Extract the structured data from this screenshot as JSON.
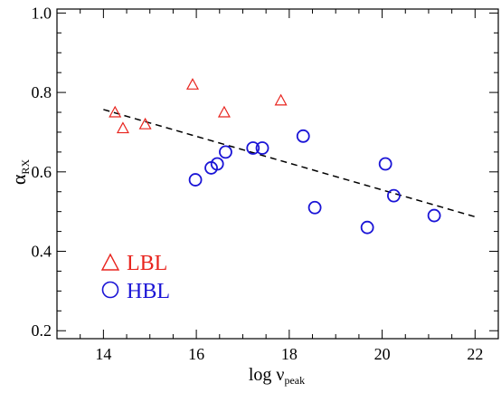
{
  "chart_data": {
    "type": "scatter",
    "xlabel": {
      "main": "log ν",
      "sub": "peak"
    },
    "ylabel": {
      "main": "α",
      "sub": "RX"
    },
    "xlim": [
      13,
      22.5
    ],
    "ylim": [
      0.18,
      1.01
    ],
    "xticks": [
      14,
      16,
      18,
      20,
      22
    ],
    "xtick_labels": [
      "14",
      "16",
      "18",
      "20",
      "22"
    ],
    "yticks": [
      0.2,
      0.4,
      0.6,
      0.8,
      1.0
    ],
    "ytick_labels": [
      "0.2",
      "0.4",
      "0.6",
      "0.8",
      "1.0"
    ],
    "grid": false,
    "legend_position": "bottom-left",
    "series": [
      {
        "name": "LBL",
        "marker": "triangle",
        "color": "#e8241e",
        "points": [
          {
            "x": 14.25,
            "y": 0.75
          },
          {
            "x": 14.42,
            "y": 0.71
          },
          {
            "x": 14.9,
            "y": 0.72
          },
          {
            "x": 15.92,
            "y": 0.82
          },
          {
            "x": 16.6,
            "y": 0.75
          },
          {
            "x": 17.82,
            "y": 0.78
          }
        ]
      },
      {
        "name": "HBL",
        "marker": "circle",
        "color": "#1a14d6",
        "points": [
          {
            "x": 15.98,
            "y": 0.58
          },
          {
            "x": 16.32,
            "y": 0.61
          },
          {
            "x": 16.45,
            "y": 0.62
          },
          {
            "x": 16.63,
            "y": 0.65
          },
          {
            "x": 17.22,
            "y": 0.66
          },
          {
            "x": 17.42,
            "y": 0.66
          },
          {
            "x": 18.3,
            "y": 0.69
          },
          {
            "x": 18.55,
            "y": 0.51
          },
          {
            "x": 19.68,
            "y": 0.46
          },
          {
            "x": 20.07,
            "y": 0.62
          },
          {
            "x": 20.25,
            "y": 0.54
          },
          {
            "x": 21.12,
            "y": 0.49
          }
        ]
      }
    ],
    "fit_line": {
      "style": "dashed",
      "color": "#000000",
      "x": [
        14,
        22
      ],
      "y": [
        0.757,
        0.487
      ]
    }
  }
}
